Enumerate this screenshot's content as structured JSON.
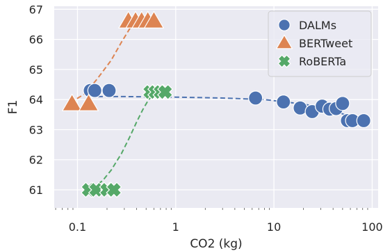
{
  "chart_data": {
    "type": "scatter",
    "xscale": "log",
    "xlabel": "CO2 (kg)",
    "ylabel": "F1",
    "xlim": [
      0.058,
      115
    ],
    "ylim": [
      60.4,
      67.1
    ],
    "xticks": [
      0.1,
      1,
      10,
      100
    ],
    "xtick_labels": [
      "0.1",
      "1",
      "10",
      "100"
    ],
    "yticks": [
      61,
      62,
      63,
      64,
      65,
      66,
      67
    ],
    "ytick_labels": [
      "61",
      "62",
      "63",
      "64",
      "65",
      "66",
      "67"
    ],
    "grid": true,
    "background": "#eaeaf2",
    "legend_position": "top-right",
    "series": [
      {
        "name": "DALMs",
        "marker": "circle",
        "color": "#4c72b0",
        "x": [
          0.135,
          0.15,
          0.21,
          6.5,
          12.5,
          18.5,
          24.5,
          31,
          37,
          43,
          50,
          56,
          63,
          82
        ],
        "y": [
          64.3,
          64.3,
          64.3,
          64.05,
          63.92,
          63.72,
          63.6,
          63.78,
          63.68,
          63.7,
          63.87,
          63.3,
          63.3,
          63.3
        ],
        "fit": {
          "x": [
            0.135,
            0.3,
            1,
            3,
            8,
            20,
            40,
            60,
            80
          ],
          "y": [
            64.1,
            64.1,
            64.08,
            64.05,
            64.0,
            63.85,
            63.65,
            63.42,
            63.3
          ]
        }
      },
      {
        "name": "BERTweet",
        "marker": "triangle",
        "color": "#dd8452",
        "x": [
          0.088,
          0.13,
          0.33,
          0.39,
          0.45,
          0.52,
          0.6
        ],
        "y": [
          63.85,
          63.85,
          66.6,
          66.6,
          66.6,
          66.6,
          66.6
        ],
        "fit": {
          "x": [
            0.085,
            0.12,
            0.16,
            0.22,
            0.28,
            0.34,
            0.4,
            0.46
          ],
          "y": [
            63.9,
            64.2,
            64.7,
            65.3,
            65.9,
            66.35,
            66.65,
            66.9
          ]
        }
      },
      {
        "name": "RoBERTa",
        "marker": "x",
        "color": "#55a868",
        "x": [
          0.13,
          0.155,
          0.2,
          0.235,
          0.55,
          0.62,
          0.7,
          0.78
        ],
        "y": [
          61.0,
          61.0,
          61.0,
          61.0,
          64.25,
          64.25,
          64.25,
          64.25
        ],
        "fit": {
          "x": [
            0.14,
            0.18,
            0.22,
            0.28,
            0.34,
            0.4,
            0.46,
            0.52,
            0.58
          ],
          "y": [
            61.05,
            61.3,
            61.65,
            62.2,
            62.75,
            63.25,
            63.65,
            63.95,
            64.15
          ]
        }
      }
    ]
  }
}
